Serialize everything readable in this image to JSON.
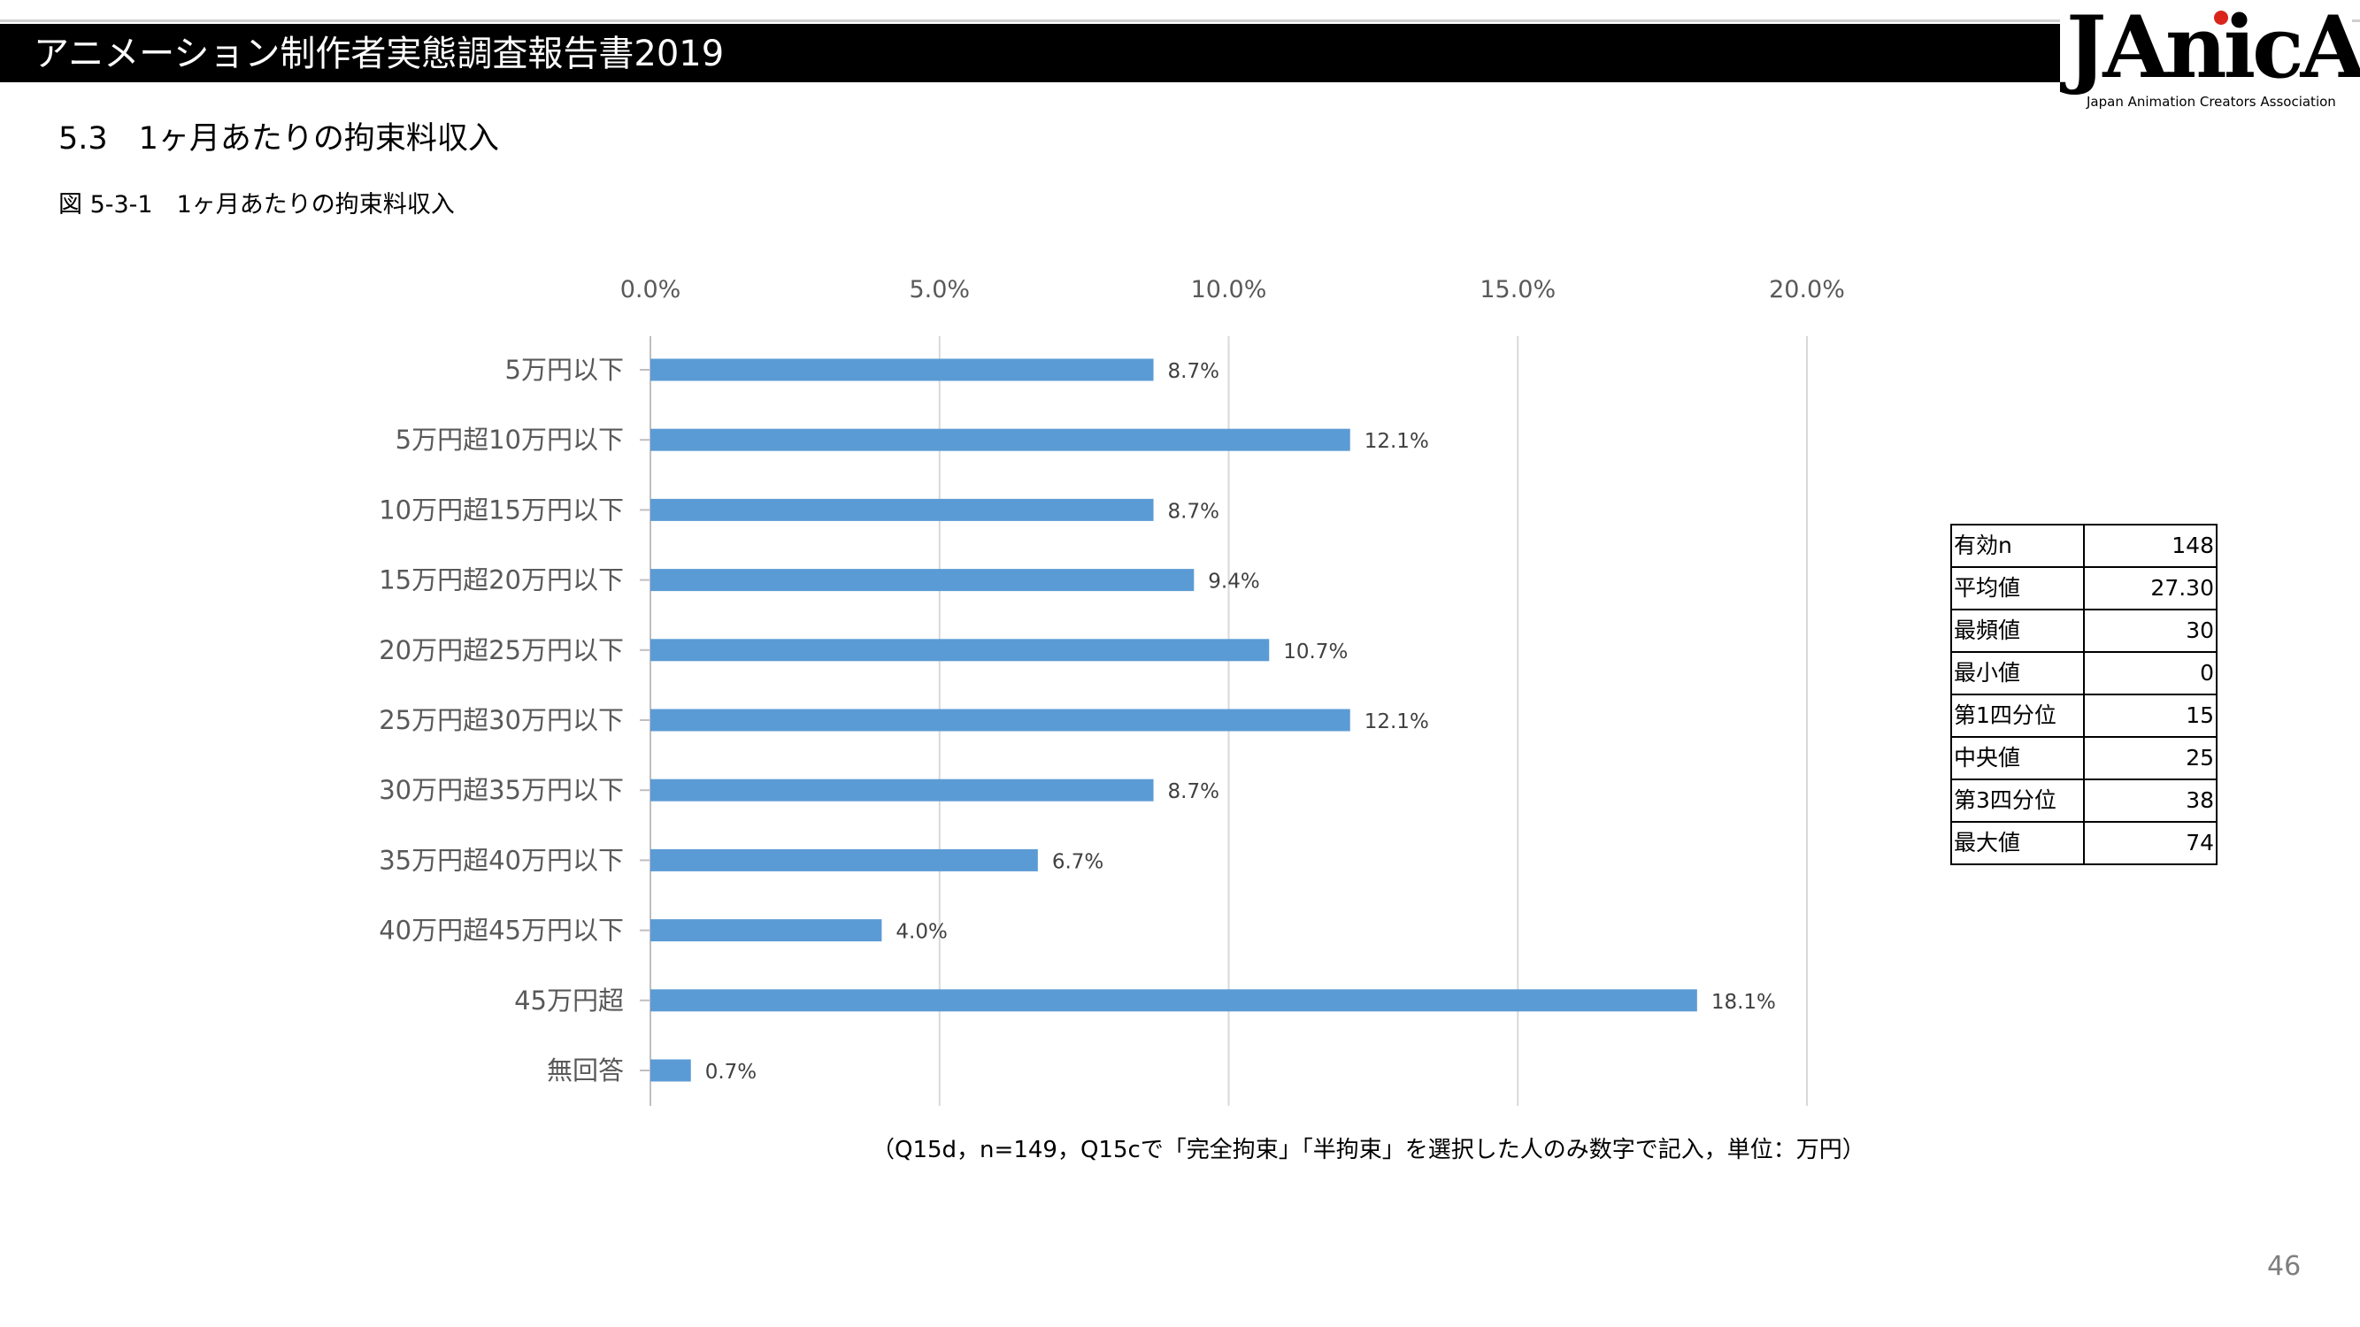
{
  "header": {
    "title": "アニメーション制作者実態調査報告書2019",
    "logo_text": "JAnicA",
    "logo_subtitle": "Japan Animation Creators Association"
  },
  "section_title": "5.3　1ヶ月あたりの拘束料収入",
  "figure_title": "図 5-3-1　1ヶ月あたりの拘束料収入",
  "chart_data": {
    "type": "bar",
    "orientation": "horizontal",
    "categories": [
      "5万円以下",
      "5万円超10万円以下",
      "10万円超15万円以下",
      "15万円超20万円以下",
      "20万円超25万円以下",
      "25万円超30万円以下",
      "30万円超35万円以下",
      "35万円超40万円以下",
      "40万円超45万円以下",
      "45万円超",
      "無回答"
    ],
    "values": [
      8.7,
      12.1,
      8.7,
      9.4,
      10.7,
      12.1,
      8.7,
      6.7,
      4.0,
      18.1,
      0.7
    ],
    "value_labels": [
      "8.7%",
      "12.1%",
      "8.7%",
      "9.4%",
      "10.7%",
      "12.1%",
      "8.7%",
      "6.7%",
      "4.0%",
      "18.1%",
      "0.7%"
    ],
    "xlim": [
      0,
      20
    ],
    "ticks": [
      "0.0%",
      "5.0%",
      "10.0%",
      "15.0%",
      "20.0%"
    ],
    "axis_position": "top",
    "grid": true,
    "bar_color": "#5b9bd5"
  },
  "stats_table": [
    {
      "label": "有効n",
      "value": "148"
    },
    {
      "label": "平均値",
      "value": "27.30"
    },
    {
      "label": "最頻値",
      "value": "30"
    },
    {
      "label": "最小値",
      "value": "0"
    },
    {
      "label": "第1四分位",
      "value": "15"
    },
    {
      "label": "中央値",
      "value": "25"
    },
    {
      "label": "第3四分位",
      "value": "38"
    },
    {
      "label": "最大値",
      "value": "74"
    }
  ],
  "note": "（Q15d，n=149，Q15cで「完全拘束」「半拘束」を選択した人のみ数字で記入，単位：万円）",
  "page_number": "46"
}
